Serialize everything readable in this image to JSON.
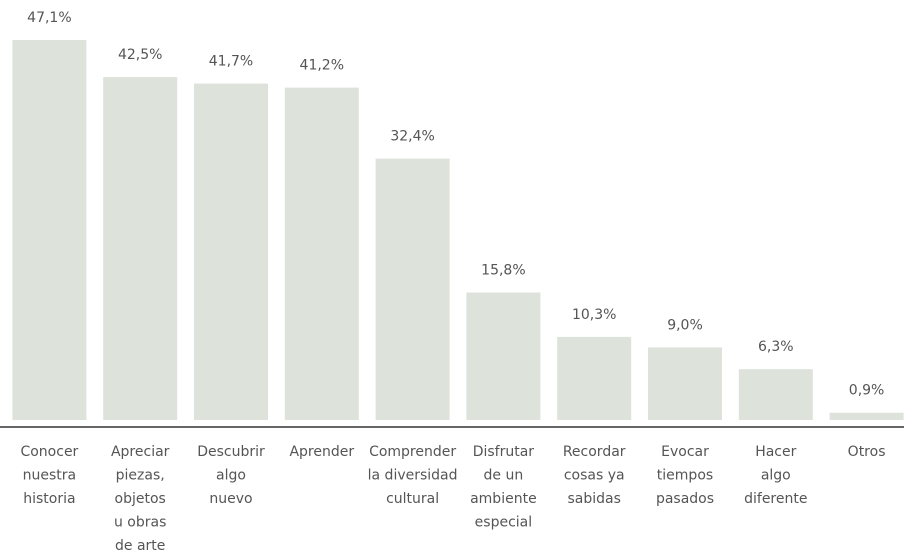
{
  "chart_data": {
    "type": "bar",
    "color": "#dde3da",
    "categories": [
      [
        "Conocer",
        "nuestra",
        "historia"
      ],
      [
        "Apreciar",
        "piezas,",
        "objetos",
        "u obras",
        "de arte"
      ],
      [
        "Descubrir",
        "algo",
        "nuevo"
      ],
      [
        "Aprender"
      ],
      [
        "Comprender",
        "la diversidad",
        "cultural"
      ],
      [
        "Disfrutar",
        "de un",
        "ambiente",
        "especial"
      ],
      [
        "Recordar",
        "cosas ya",
        "sabidas"
      ],
      [
        "Evocar",
        "tiempos",
        "pasados"
      ],
      [
        "Hacer",
        "algo",
        "diferente"
      ],
      [
        "Otros"
      ]
    ],
    "values": [
      47.1,
      42.5,
      41.7,
      41.2,
      32.4,
      15.8,
      10.3,
      9.0,
      6.3,
      0.9
    ],
    "value_labels": [
      "47,1%",
      "42,5%",
      "41,7%",
      "41,2%",
      "32,4%",
      "15,8%",
      "10,3%",
      "9,0%",
      "6,3%",
      "0,9%"
    ]
  }
}
